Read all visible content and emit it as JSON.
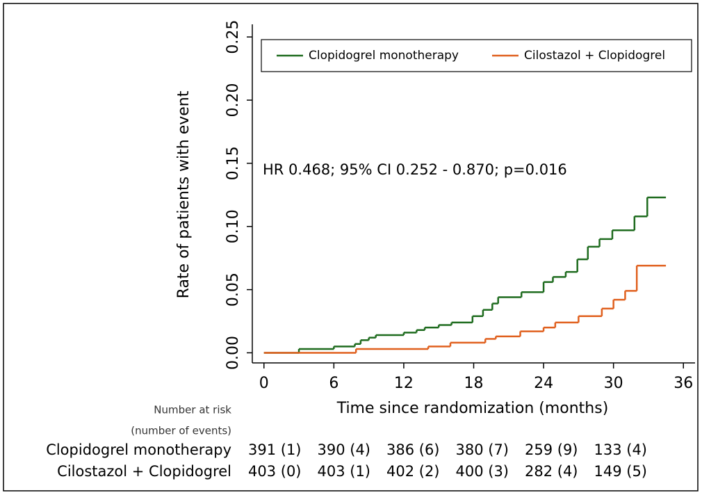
{
  "chart_data": {
    "type": "step",
    "annotation": "HR 0.468; 95% CI 0.252 -  0.870; p=0.016",
    "x_label": "Time since randomization (months)",
    "y_label": "Rate  of patients  with  event",
    "xlim": [
      -1,
      37
    ],
    "xticks": [
      0,
      6,
      12,
      18,
      24,
      30,
      36
    ],
    "ylim": [
      -0.008,
      0.26
    ],
    "yticks": [
      {
        "value": 0,
        "label": "0.00"
      },
      {
        "value": 0.05,
        "label": "0.05"
      },
      {
        "value": 0.1,
        "label": "0.10"
      },
      {
        "value": 0.15,
        "label": "0.15"
      },
      {
        "value": 0.2,
        "label": "0.20"
      },
      {
        "value": 0.25,
        "label": "0.25"
      }
    ],
    "legend": "top",
    "series": [
      {
        "name": "Clopidogrel monotherapy",
        "color": "#1e6b1e",
        "x": [
          0,
          3,
          6,
          7.8,
          8.3,
          9,
          9.6,
          12,
          13.1,
          13.8,
          15,
          16.1,
          17.9,
          18.8,
          19.6,
          20.1,
          22.1,
          24,
          24.8,
          25.9,
          26.9,
          27.8,
          28.8,
          29.9,
          31.8,
          32.9,
          34.5
        ],
        "values": [
          0,
          0.003,
          0.005,
          0.007,
          0.01,
          0.012,
          0.014,
          0.016,
          0.018,
          0.02,
          0.022,
          0.024,
          0.029,
          0.034,
          0.039,
          0.044,
          0.048,
          0.056,
          0.06,
          0.064,
          0.074,
          0.084,
          0.09,
          0.097,
          0.108,
          0.123,
          0.123
        ]
      },
      {
        "name": "Cilostazol + Clopidogrel",
        "color": "#e0601e",
        "x": [
          0,
          7.9,
          14.1,
          16,
          19,
          19.9,
          22,
          24,
          25,
          27,
          29,
          30,
          31,
          32,
          34.5
        ],
        "values": [
          0,
          0.003,
          0.005,
          0.008,
          0.011,
          0.013,
          0.017,
          0.02,
          0.024,
          0.029,
          0.035,
          0.042,
          0.049,
          0.069,
          0.069
        ]
      }
    ]
  },
  "risk_table": {
    "title": [
      "Number at risk",
      "(number of events)"
    ],
    "rows": [
      {
        "name": "Clopidogrel monotherapy",
        "cells": [
          "391 (1)",
          "390 (4)",
          "386 (6)",
          "380 (7)",
          "259 (9)",
          "133 (4)"
        ]
      },
      {
        "name": "Cilostazol + Clopidogrel",
        "cells": [
          "403 (0)",
          "403 (1)",
          "402 (2)",
          "400 (3)",
          "282 (4)",
          "149 (5)"
        ]
      }
    ]
  }
}
